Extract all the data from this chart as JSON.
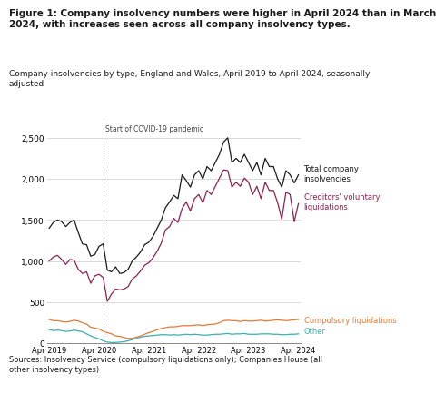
{
  "title_bold": "Figure 1: Company insolvency numbers were higher in April 2024 than in March\n2024, with increases seen across all company insolvency types.",
  "subtitle": "Company insolvencies by type, England and Wales, April 2019 to April 2024, seasonally\nadjusted",
  "source": "Sources: Insolvency Service (compulsory liquidations only); Companies House (all\nother insolvency types)",
  "covid_label": "Start of COVID-19 pandemic",
  "covid_x": 13,
  "labels": {
    "total": "Total company\ninsolvencies",
    "cvl": "Creditors' voluntary\nliquidations",
    "compulsory": "Compulsory liquidations",
    "other": "Other"
  },
  "colors": {
    "total": "#1a1a1a",
    "cvl": "#8b2252",
    "compulsory": "#e07b39",
    "other": "#3ab0b0"
  },
  "ylim": [
    0,
    2700
  ],
  "yticks": [
    0,
    500,
    1000,
    1500,
    2000,
    2500
  ],
  "background": "#ffffff",
  "total": [
    1400,
    1470,
    1500,
    1480,
    1420,
    1470,
    1500,
    1350,
    1210,
    1200,
    1060,
    1080,
    1180,
    1210,
    890,
    870,
    930,
    850,
    860,
    900,
    1000,
    1050,
    1110,
    1200,
    1230,
    1300,
    1400,
    1500,
    1650,
    1720,
    1800,
    1760,
    2050,
    1980,
    1900,
    2050,
    2100,
    2000,
    2150,
    2100,
    2200,
    2300,
    2450,
    2500,
    2200,
    2250,
    2200,
    2300,
    2200,
    2100,
    2200,
    2050,
    2250,
    2150,
    2150,
    2000,
    1900,
    2100,
    2050,
    1950,
    2050
  ],
  "cvl": [
    1000,
    1050,
    1070,
    1020,
    960,
    1020,
    1010,
    900,
    850,
    870,
    730,
    820,
    840,
    800,
    510,
    600,
    660,
    650,
    660,
    690,
    780,
    820,
    880,
    950,
    980,
    1040,
    1120,
    1220,
    1380,
    1420,
    1520,
    1470,
    1640,
    1720,
    1610,
    1760,
    1810,
    1710,
    1860,
    1810,
    1910,
    2010,
    2110,
    2100,
    1900,
    1960,
    1910,
    2010,
    1960,
    1810,
    1910,
    1760,
    1960,
    1860,
    1860,
    1710,
    1510,
    1840,
    1810,
    1480,
    1700
  ],
  "compulsory": [
    290,
    275,
    275,
    265,
    260,
    265,
    280,
    270,
    250,
    235,
    195,
    185,
    175,
    145,
    130,
    115,
    90,
    85,
    70,
    60,
    60,
    75,
    90,
    110,
    130,
    145,
    165,
    180,
    190,
    200,
    200,
    205,
    215,
    215,
    215,
    220,
    225,
    215,
    225,
    230,
    235,
    250,
    275,
    280,
    275,
    275,
    265,
    275,
    270,
    270,
    275,
    280,
    270,
    275,
    280,
    285,
    280,
    275,
    280,
    285,
    290
  ],
  "other": [
    165,
    155,
    160,
    155,
    145,
    150,
    160,
    150,
    140,
    115,
    90,
    70,
    55,
    30,
    15,
    10,
    10,
    15,
    20,
    30,
    45,
    60,
    75,
    85,
    90,
    95,
    100,
    105,
    105,
    100,
    105,
    100,
    105,
    110,
    105,
    110,
    105,
    100,
    100,
    105,
    110,
    110,
    115,
    120,
    110,
    115,
    115,
    120,
    110,
    110,
    110,
    115,
    115,
    115,
    110,
    110,
    105,
    105,
    110,
    110,
    115
  ],
  "n_points": 61,
  "x_tick_positions": [
    0,
    12,
    24,
    36,
    48,
    60
  ],
  "x_tick_labels": [
    "Apr 2019",
    "Apr 2020",
    "Apr 2021",
    "Apr 2022",
    "Apr 2023",
    "Apr 2024"
  ]
}
